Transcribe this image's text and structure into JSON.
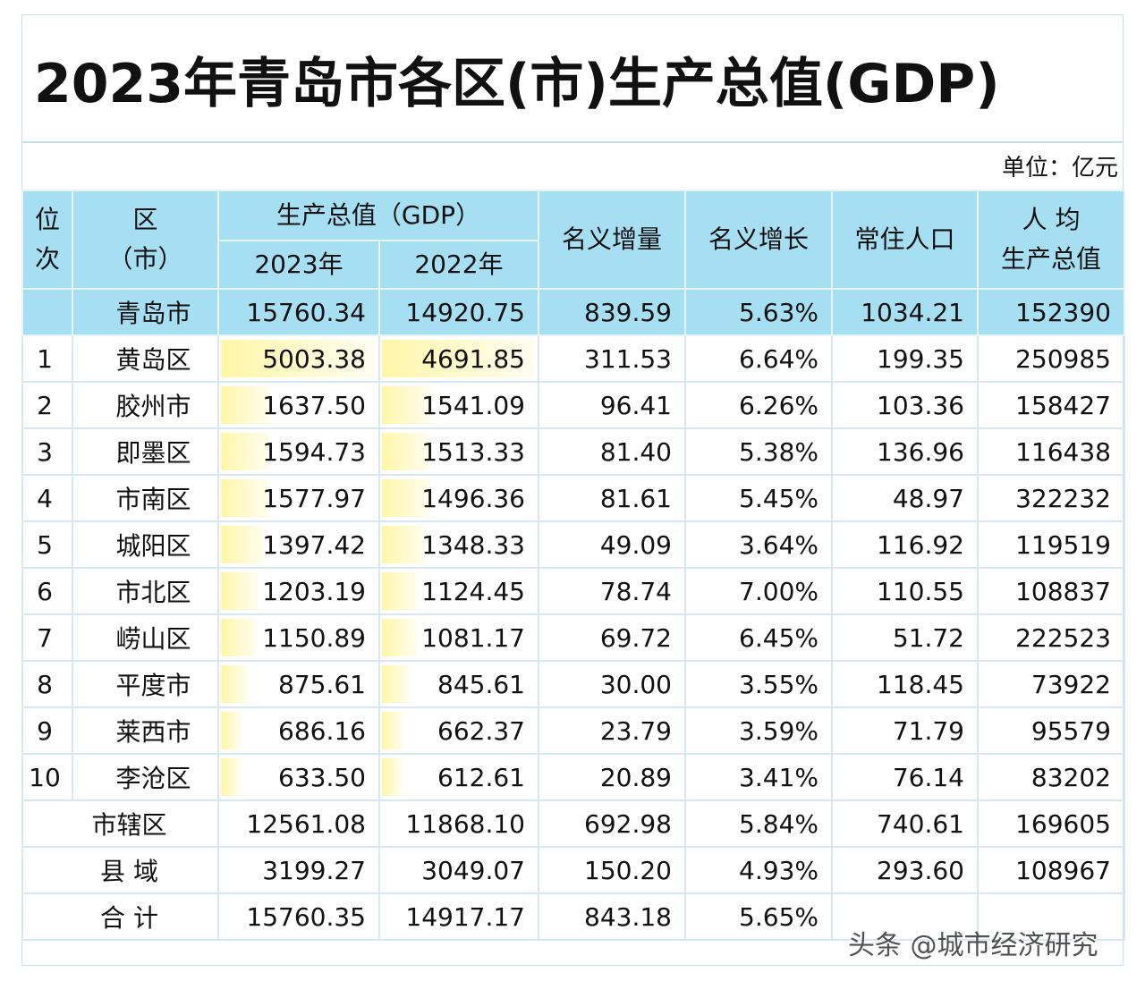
{
  "title": "2023年青岛市各区(市)生产总值(GDP)",
  "unit": "单位：亿元",
  "header": {
    "rank": "位次",
    "district": "区\n（市）",
    "gdp_group": "生产总值（GDP）",
    "y2023": "2023年",
    "y2022": "2022年",
    "increase": "名义增量",
    "growth": "名义增长",
    "population": "常住人口",
    "per_capita": "人 均\n生产总值"
  },
  "city": {
    "name": "青岛市",
    "gdp2023": "15760.34",
    "gdp2022": "14920.75",
    "increase": "839.59",
    "growth": "5.63%",
    "population": "1034.21",
    "per_capita": "152390"
  },
  "rows": [
    {
      "rank": "1",
      "name": "黄岛区",
      "gdp2023": "5003.38",
      "gdp2022": "4691.85",
      "increase": "311.53",
      "growth": "6.64%",
      "population": "199.35",
      "per_capita": "250985"
    },
    {
      "rank": "2",
      "name": "胶州市",
      "gdp2023": "1637.50",
      "gdp2022": "1541.09",
      "increase": "96.41",
      "growth": "6.26%",
      "population": "103.36",
      "per_capita": "158427"
    },
    {
      "rank": "3",
      "name": "即墨区",
      "gdp2023": "1594.73",
      "gdp2022": "1513.33",
      "increase": "81.40",
      "growth": "5.38%",
      "population": "136.96",
      "per_capita": "116438"
    },
    {
      "rank": "4",
      "name": "市南区",
      "gdp2023": "1577.97",
      "gdp2022": "1496.36",
      "increase": "81.61",
      "growth": "5.45%",
      "population": "48.97",
      "per_capita": "322232"
    },
    {
      "rank": "5",
      "name": "城阳区",
      "gdp2023": "1397.42",
      "gdp2022": "1348.33",
      "increase": "49.09",
      "growth": "3.64%",
      "population": "116.92",
      "per_capita": "119519"
    },
    {
      "rank": "6",
      "name": "市北区",
      "gdp2023": "1203.19",
      "gdp2022": "1124.45",
      "increase": "78.74",
      "growth": "7.00%",
      "population": "110.55",
      "per_capita": "108837"
    },
    {
      "rank": "7",
      "name": "崂山区",
      "gdp2023": "1150.89",
      "gdp2022": "1081.17",
      "increase": "69.72",
      "growth": "6.45%",
      "population": "51.72",
      "per_capita": "222523"
    },
    {
      "rank": "8",
      "name": "平度市",
      "gdp2023": "875.61",
      "gdp2022": "845.61",
      "increase": "30.00",
      "growth": "3.55%",
      "population": "118.45",
      "per_capita": "73922"
    },
    {
      "rank": "9",
      "name": "莱西市",
      "gdp2023": "686.16",
      "gdp2022": "662.37",
      "increase": "23.79",
      "growth": "3.59%",
      "population": "71.79",
      "per_capita": "95579"
    },
    {
      "rank": "10",
      "name": "李沧区",
      "gdp2023": "633.50",
      "gdp2022": "612.61",
      "increase": "20.89",
      "growth": "3.41%",
      "population": "76.14",
      "per_capita": "83202"
    }
  ],
  "summary": [
    {
      "name": "市辖区",
      "gdp2023": "12561.08",
      "gdp2022": "11868.10",
      "increase": "692.98",
      "growth": "5.84%",
      "population": "740.61",
      "per_capita": "169605"
    },
    {
      "name": "县 域",
      "gdp2023": "3199.27",
      "gdp2022": "3049.07",
      "increase": "150.20",
      "growth": "4.93%",
      "population": "293.60",
      "per_capita": "108967"
    },
    {
      "name": "合 计",
      "gdp2023": "15760.35",
      "gdp2022": "14917.17",
      "increase": "843.18",
      "growth": "5.65%",
      "population": "",
      "per_capita": ""
    }
  ],
  "watermark": "头条 @城市经济研究",
  "colors": {
    "header_bg": "#a6def2",
    "bar_fill": "#fff6a8",
    "grid": "#d7e8ee"
  }
}
